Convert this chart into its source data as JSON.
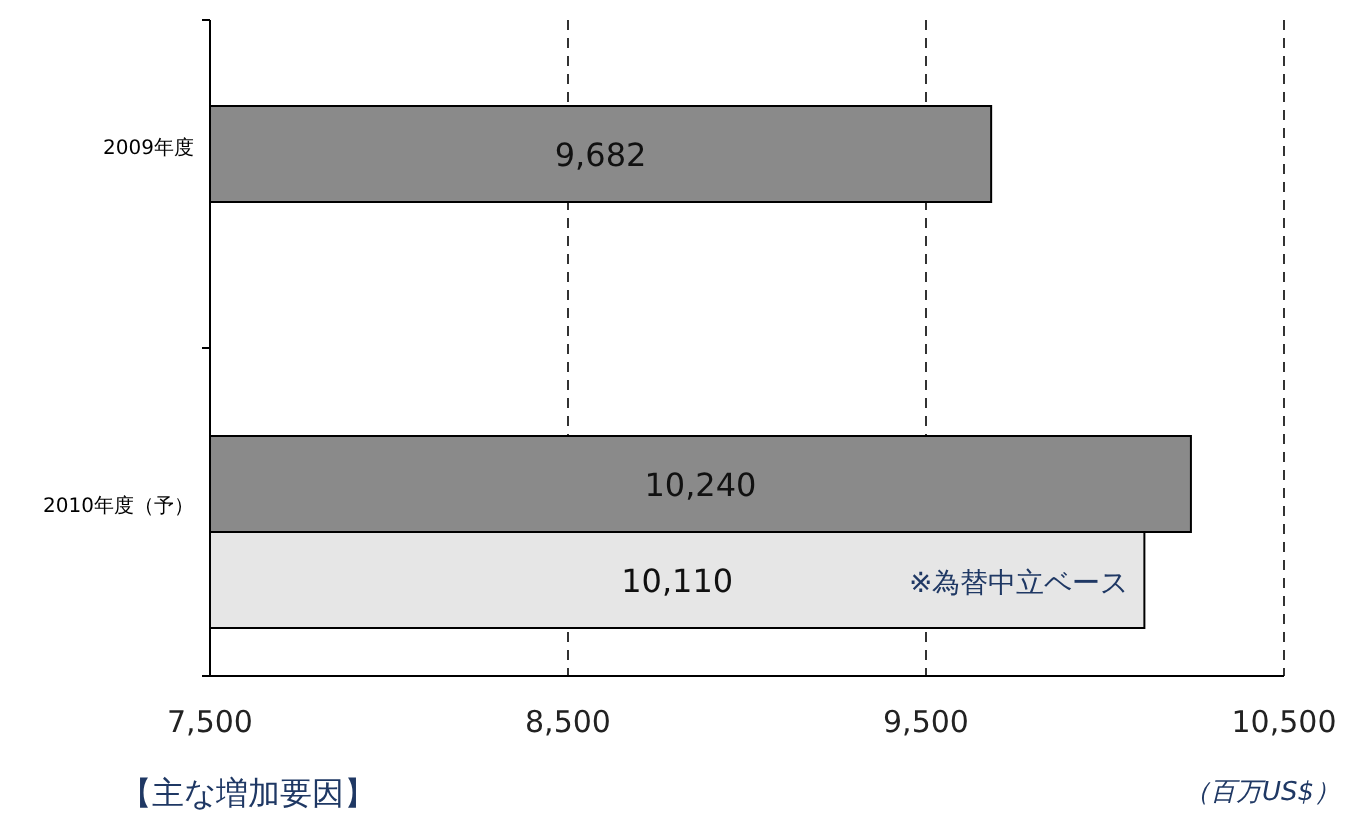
{
  "chart_data": {
    "type": "bar",
    "orientation": "horizontal",
    "categories": [
      "2009年度",
      "2010年度（予）"
    ],
    "series": [
      {
        "color": "#8a8a8a",
        "values": [
          9682,
          10240
        ],
        "value_labels": [
          "9,682",
          "10,240"
        ]
      },
      {
        "color": "#e6e6e6",
        "values": [
          null,
          10110
        ],
        "value_labels": [
          null,
          "10,110"
        ]
      }
    ],
    "xlim": [
      7500,
      10500
    ],
    "xticks": [
      {
        "value": 7500,
        "label": "7,500"
      },
      {
        "value": 8500,
        "label": "8,500"
      },
      {
        "value": 9500,
        "label": "9,500"
      },
      {
        "value": 10500,
        "label": "10,500"
      }
    ],
    "xlabel": "（百万US$）",
    "grid": "x",
    "annotations": [
      "※為替中立ベース",
      "【主な増加要因】"
    ]
  }
}
